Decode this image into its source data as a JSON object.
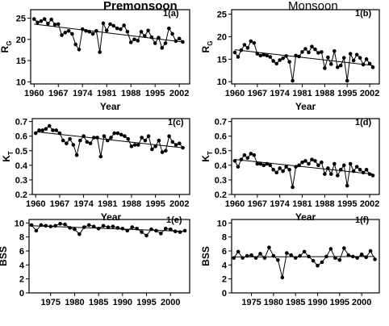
{
  "chart_data": [
    {
      "id": "1a",
      "type": "line",
      "title": "Premonsoon",
      "panel_label": "1(a)",
      "xlabel": "Year",
      "ylabel": "R",
      "ylabel_sub": "G",
      "xlim": [
        1959,
        2005
      ],
      "ylim": [
        9.5,
        27
      ],
      "xticks": [
        1960,
        1967,
        1974,
        1981,
        1988,
        1995,
        2002
      ],
      "yticks": [
        10,
        15,
        20,
        25
      ],
      "x": [
        1960,
        1961,
        1962,
        1963,
        1964,
        1965,
        1966,
        1967,
        1968,
        1969,
        1970,
        1971,
        1972,
        1973,
        1974,
        1975,
        1976,
        1977,
        1978,
        1979,
        1980,
        1981,
        1982,
        1983,
        1984,
        1985,
        1986,
        1987,
        1988,
        1989,
        1990,
        1991,
        1992,
        1993,
        1994,
        1995,
        1996,
        1997,
        1998,
        1999,
        2000,
        2001,
        2002,
        2003
      ],
      "y": [
        24.8,
        24,
        24.3,
        24.8,
        23.7,
        24.7,
        23.5,
        23.6,
        21,
        21.6,
        22,
        21.3,
        18.8,
        17.6,
        22.4,
        22,
        21.8,
        21.3,
        22,
        17,
        23.8,
        22.1,
        23.6,
        23.2,
        22.6,
        22.4,
        23.3,
        21.8,
        19.3,
        20,
        19.7,
        21.8,
        20.8,
        22.1,
        20.5,
        19.1,
        20.4,
        18,
        19.1,
        22.6,
        21.3,
        19.6,
        20.2,
        19.4
      ],
      "trend": [
        [
          1960,
          23.6
        ],
        [
          2003,
          19.4
        ]
      ]
    },
    {
      "id": "1b",
      "type": "line",
      "title": "Monsoon",
      "panel_label": "1(b)",
      "xlabel": "Year",
      "ylabel": "R",
      "ylabel_sub": "G",
      "xlim": [
        1959,
        2005
      ],
      "ylim": [
        9.5,
        26
      ],
      "xticks": [
        1960,
        1967,
        1974,
        1981,
        1988,
        1995,
        2002
      ],
      "yticks": [
        10,
        15,
        20,
        25
      ],
      "x": [
        1960,
        1961,
        1962,
        1963,
        1964,
        1965,
        1966,
        1967,
        1968,
        1969,
        1970,
        1971,
        1972,
        1973,
        1974,
        1975,
        1976,
        1977,
        1978,
        1979,
        1980,
        1981,
        1982,
        1983,
        1984,
        1985,
        1986,
        1987,
        1988,
        1989,
        1990,
        1991,
        1992,
        1993,
        1994,
        1995,
        1996,
        1997,
        1998,
        1999,
        2000,
        2001,
        2002,
        2003
      ],
      "y": [
        16.5,
        15.5,
        17,
        18.2,
        17.5,
        19,
        18.6,
        16.2,
        15.8,
        16,
        15.8,
        15.5,
        14.6,
        14,
        14.8,
        15.2,
        15.7,
        14.4,
        10.2,
        15.8,
        15.6,
        16.6,
        17.3,
        16.5,
        17.8,
        17.2,
        16.4,
        16.6,
        13,
        15.4,
        13.9,
        16.8,
        13.2,
        13.6,
        15.3,
        10.2,
        16.2,
        14.7,
        16,
        15.3,
        13.8,
        15,
        14,
        13.2
      ],
      "trend": [
        [
          1960,
          17.1
        ],
        [
          2003,
          13.6
        ]
      ]
    },
    {
      "id": "1c",
      "type": "line",
      "title": "",
      "panel_label": "1(c)",
      "xlabel": "Year",
      "ylabel": "K",
      "ylabel_sub": "T",
      "xlim": [
        1959,
        2005
      ],
      "ylim": [
        0.2,
        0.72
      ],
      "xticks": [
        1960,
        1967,
        1974,
        1981,
        1988,
        1995,
        2002
      ],
      "yticks": [
        0.2,
        0.3,
        0.4,
        0.5,
        0.6,
        0.7
      ],
      "x": [
        1960,
        1961,
        1962,
        1963,
        1964,
        1965,
        1966,
        1967,
        1968,
        1969,
        1970,
        1971,
        1972,
        1973,
        1974,
        1975,
        1976,
        1977,
        1978,
        1979,
        1980,
        1981,
        1982,
        1983,
        1984,
        1985,
        1986,
        1987,
        1988,
        1989,
        1990,
        1991,
        1992,
        1993,
        1994,
        1995,
        1996,
        1997,
        1998,
        1999,
        2000,
        2001,
        2002,
        2003
      ],
      "y": [
        0.62,
        0.64,
        0.64,
        0.65,
        0.67,
        0.64,
        0.64,
        0.62,
        0.57,
        0.55,
        0.58,
        0.54,
        0.47,
        0.57,
        0.6,
        0.56,
        0.55,
        0.59,
        0.59,
        0.46,
        0.6,
        0.57,
        0.59,
        0.62,
        0.62,
        0.61,
        0.6,
        0.58,
        0.53,
        0.54,
        0.54,
        0.59,
        0.57,
        0.6,
        0.51,
        0.53,
        0.57,
        0.49,
        0.5,
        0.6,
        0.56,
        0.54,
        0.55,
        0.52
      ],
      "trend": [
        [
          1960,
          0.63
        ],
        [
          2003,
          0.52
        ]
      ]
    },
    {
      "id": "1d",
      "type": "line",
      "title": "",
      "panel_label": "1(d)",
      "xlabel": "Year",
      "ylabel": "K",
      "ylabel_sub": "T",
      "xlim": [
        1959,
        2005
      ],
      "ylim": [
        0.2,
        0.72
      ],
      "xticks": [
        1960,
        1967,
        1974,
        1981,
        1988,
        1995,
        2002
      ],
      "yticks": [
        0.2,
        0.3,
        0.4,
        0.5,
        0.6,
        0.7
      ],
      "x": [
        1960,
        1961,
        1962,
        1963,
        1964,
        1965,
        1966,
        1967,
        1968,
        1969,
        1970,
        1971,
        1972,
        1973,
        1974,
        1975,
        1976,
        1977,
        1978,
        1979,
        1980,
        1981,
        1982,
        1983,
        1984,
        1985,
        1986,
        1987,
        1988,
        1989,
        1990,
        1991,
        1992,
        1993,
        1994,
        1995,
        1996,
        1997,
        1998,
        1999,
        2000,
        2001,
        2002,
        2003
      ],
      "y": [
        0.43,
        0.39,
        0.44,
        0.47,
        0.45,
        0.48,
        0.47,
        0.41,
        0.41,
        0.4,
        0.41,
        0.4,
        0.37,
        0.35,
        0.38,
        0.36,
        0.39,
        0.37,
        0.25,
        0.39,
        0.4,
        0.42,
        0.43,
        0.41,
        0.44,
        0.43,
        0.4,
        0.42,
        0.34,
        0.38,
        0.34,
        0.41,
        0.33,
        0.37,
        0.4,
        0.26,
        0.41,
        0.36,
        0.39,
        0.37,
        0.35,
        0.37,
        0.34,
        0.33
      ],
      "trend": [
        [
          1960,
          0.44
        ],
        [
          2003,
          0.34
        ]
      ]
    },
    {
      "id": "1e",
      "type": "line",
      "title": "",
      "panel_label": "1(e)",
      "xlabel": "",
      "ylabel": "BSS",
      "ylabel_sub": "",
      "xlim": [
        1970.5,
        2004
      ],
      "ylim": [
        0,
        10.5
      ],
      "xticks": [
        1975,
        1980,
        1985,
        1990,
        1995,
        2000
      ],
      "yticks": [
        0,
        2,
        4,
        6,
        8,
        10
      ],
      "x": [
        1971,
        1972,
        1973,
        1974,
        1975,
        1976,
        1977,
        1978,
        1979,
        1980,
        1981,
        1982,
        1983,
        1984,
        1985,
        1986,
        1987,
        1988,
        1989,
        1990,
        1991,
        1992,
        1993,
        1994,
        1995,
        1996,
        1997,
        1998,
        1999,
        2000,
        2001,
        2002,
        2003
      ],
      "y": [
        9.7,
        8.9,
        9.7,
        9.6,
        9.5,
        9.6,
        9.9,
        9.8,
        9.3,
        9.1,
        8.4,
        9.4,
        9.7,
        9.5,
        9.2,
        9.6,
        9.4,
        9.5,
        9.3,
        9.2,
        8.9,
        9.4,
        9.2,
        8.7,
        8.2,
        9.1,
        8.9,
        8.5,
        9.2,
        9.1,
        8.8,
        8.7,
        8.9
      ],
      "trend": [
        [
          1971,
          9.6
        ],
        [
          2003,
          8.8
        ]
      ]
    },
    {
      "id": "1f",
      "type": "line",
      "title": "",
      "panel_label": "1(f)",
      "xlabel": "",
      "ylabel": "BSS",
      "ylabel_sub": "",
      "xlim": [
        1970.5,
        2004
      ],
      "ylim": [
        0,
        10.5
      ],
      "xticks": [
        1975,
        1980,
        1985,
        1990,
        1995,
        2000
      ],
      "yticks": [
        0,
        2,
        4,
        6,
        8,
        10
      ],
      "x": [
        1971,
        1972,
        1973,
        1974,
        1975,
        1976,
        1977,
        1978,
        1979,
        1980,
        1981,
        1982,
        1983,
        1984,
        1985,
        1986,
        1987,
        1988,
        1989,
        1990,
        1991,
        1992,
        1993,
        1994,
        1995,
        1996,
        1997,
        1998,
        1999,
        2000,
        2001,
        2002,
        2003
      ],
      "y": [
        5,
        5.9,
        5,
        5.3,
        5.4,
        5,
        5.6,
        5,
        6.5,
        5.3,
        4.7,
        2.2,
        5.7,
        5.4,
        5,
        5.3,
        5.9,
        5.2,
        4.6,
        3.9,
        4.4,
        5.2,
        6.3,
        5,
        4.7,
        6.4,
        5.4,
        5.2,
        5,
        5.5,
        5.1,
        6,
        4.8
      ],
      "trend": [
        [
          1971,
          5.15
        ],
        [
          2003,
          5.2
        ]
      ]
    }
  ]
}
